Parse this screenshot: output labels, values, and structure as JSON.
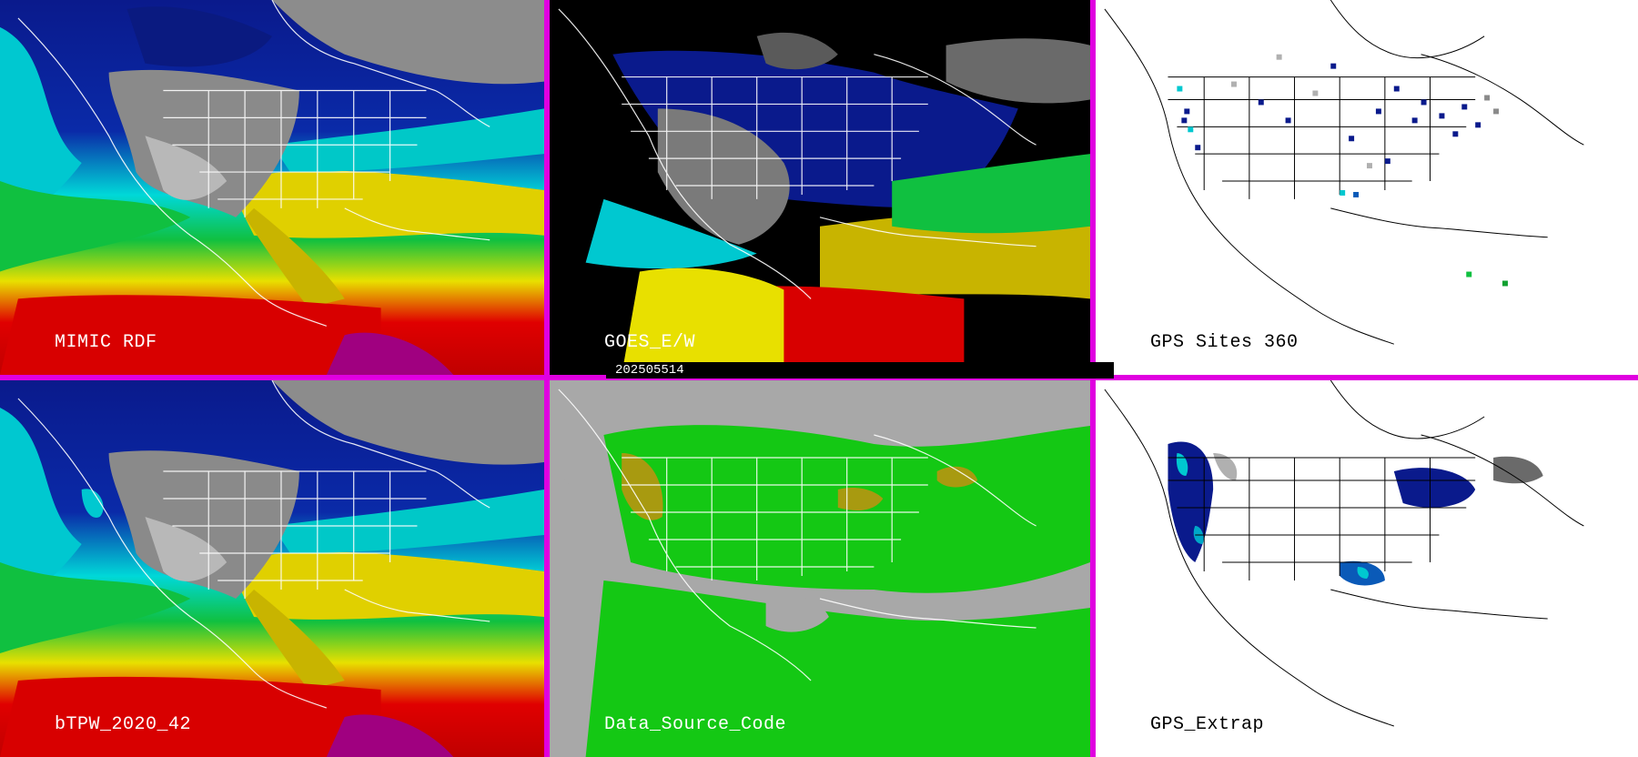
{
  "panels": [
    {
      "id": "mimic-rdf",
      "label": "MIMIC RDF",
      "style": "tpw-full"
    },
    {
      "id": "goes-ew",
      "label": "GOES_E/W",
      "style": "tpw-goes"
    },
    {
      "id": "gps-sites",
      "label": "GPS Sites   360",
      "style": "gps-sites"
    },
    {
      "id": "btpw",
      "label": "bTPW_2020_42",
      "style": "tpw-full"
    },
    {
      "id": "data-source",
      "label": "Data_Source_Code",
      "style": "source-code"
    },
    {
      "id": "gps-extrap",
      "label": "GPS_Extrap",
      "style": "gps-extrap"
    }
  ],
  "timestamp": "202505514",
  "colors": {
    "divider": "#e000e0",
    "ocean_dry": "#0a1a8c",
    "ocean_moist_cyan": "#00d8d8",
    "ocean_green": "#10c040",
    "ocean_yellow": "#e8e000",
    "ocean_red": "#e00000",
    "land_gray": "#7a7a7a",
    "source_gray": "#a8a8a8",
    "source_green": "#14c814",
    "source_olive": "#a89a10"
  }
}
